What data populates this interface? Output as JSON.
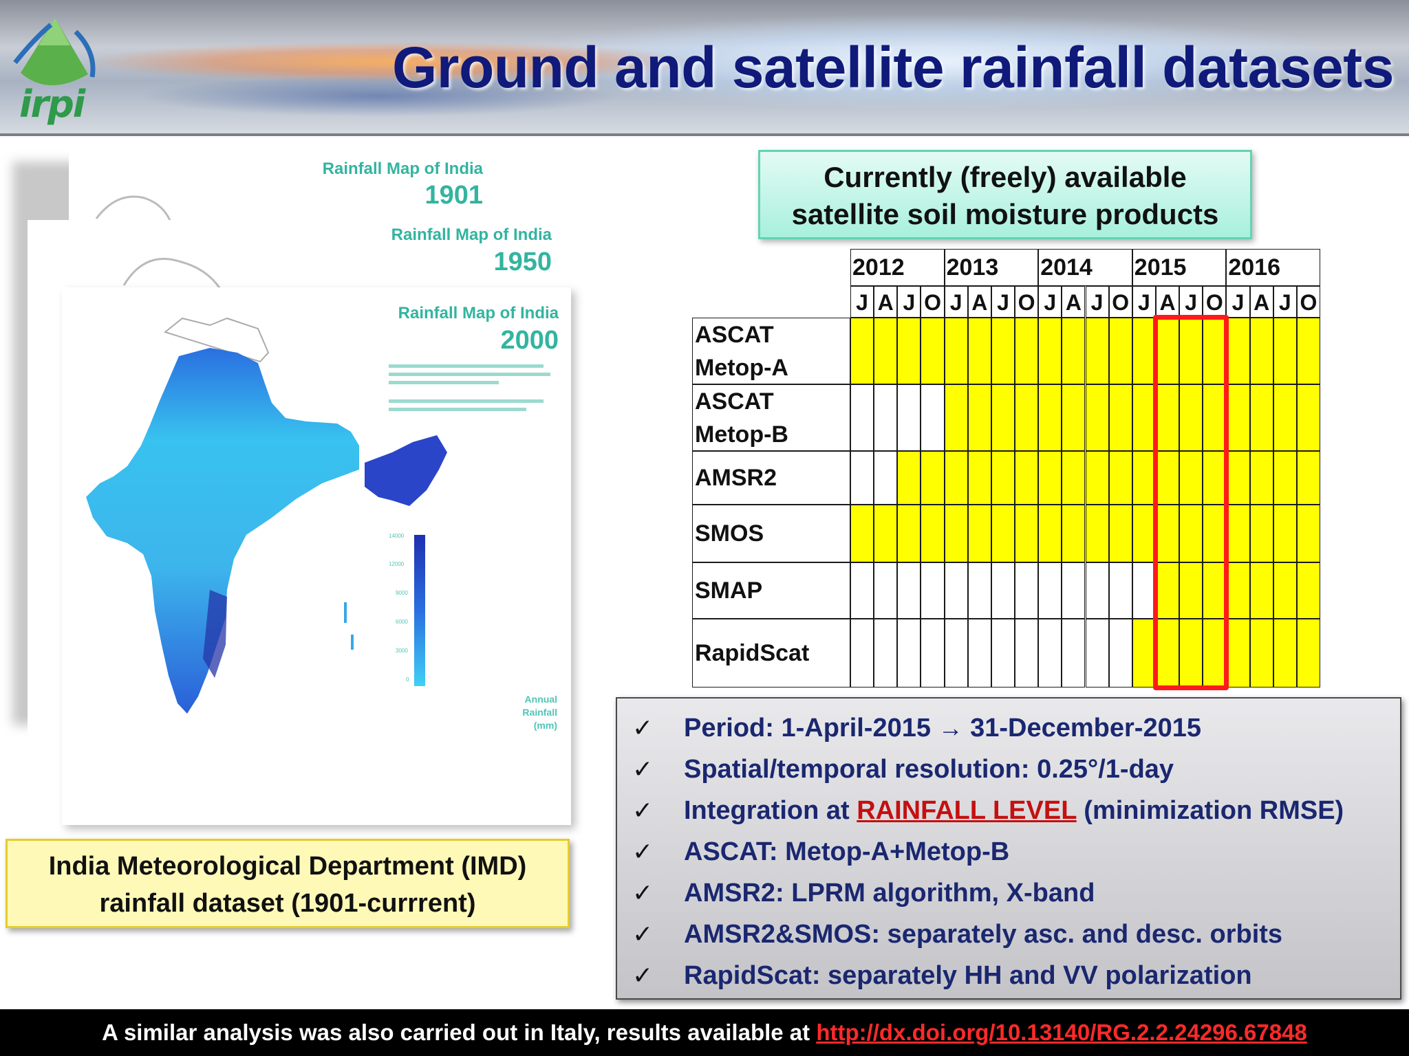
{
  "header": {
    "logo_text": "irpi",
    "title": "Ground and satellite rainfall datasets"
  },
  "maps": [
    {
      "caption": "Rainfall Map of India",
      "year": "1901"
    },
    {
      "caption": "Rainfall Map of India",
      "year": "1950"
    },
    {
      "caption": "Rainfall Map of India",
      "year": "2000"
    }
  ],
  "map_legend": {
    "ticks": [
      "14000",
      "12000",
      "9000",
      "6000",
      "3000",
      "0"
    ],
    "title_lines": [
      "Annual",
      "Rainfall",
      "(mm)"
    ]
  },
  "imd_caption": [
    "India Meteorological Department (IMD)",
    "rainfall dataset (1901-currrent)"
  ],
  "products_box": [
    "Currently (freely) available",
    "satellite soil moisture products"
  ],
  "timeline": {
    "years": [
      "2012",
      "2013",
      "2014",
      "2015",
      "2016"
    ],
    "months": [
      "J",
      "A",
      "J",
      "O"
    ],
    "products": [
      {
        "label_lines": [
          "ASCAT",
          "Metop-A"
        ],
        "available": [
          1,
          1,
          1,
          1,
          1,
          1,
          1,
          1,
          1,
          1,
          1,
          1,
          1,
          1,
          1,
          1,
          1,
          1,
          1,
          1
        ]
      },
      {
        "label_lines": [
          "ASCAT",
          "Metop-B"
        ],
        "available": [
          0,
          0,
          0,
          0,
          1,
          1,
          1,
          1,
          1,
          1,
          1,
          1,
          1,
          1,
          1,
          1,
          1,
          1,
          1,
          1
        ]
      },
      {
        "label_lines": [
          "AMSR2"
        ],
        "available": [
          0,
          0,
          1,
          1,
          1,
          1,
          1,
          1,
          1,
          1,
          1,
          1,
          1,
          1,
          1,
          1,
          1,
          1,
          1,
          1
        ]
      },
      {
        "label_lines": [
          "SMOS"
        ],
        "available": [
          1,
          1,
          1,
          1,
          1,
          1,
          1,
          1,
          1,
          1,
          1,
          1,
          1,
          1,
          1,
          1,
          1,
          1,
          1,
          1
        ]
      },
      {
        "label_lines": [
          "SMAP"
        ],
        "available": [
          0,
          0,
          0,
          0,
          0,
          0,
          0,
          0,
          0,
          0,
          0,
          0,
          0,
          1,
          1,
          1,
          1,
          1,
          1,
          1
        ]
      },
      {
        "label_lines": [
          "RapidScat"
        ],
        "available": [
          0,
          0,
          0,
          0,
          0,
          0,
          0,
          0,
          0,
          0,
          0,
          0,
          1,
          1,
          1,
          1,
          1,
          1,
          1,
          1
        ]
      }
    ],
    "highlight_color": "#ff1a1a",
    "available_color": "#ffff00"
  },
  "bullets": [
    {
      "check": "✓",
      "before": "Period: 1-April-2015 ",
      "arrow": "→",
      "after": " 31-December-2015"
    },
    {
      "check": "✓",
      "text": "Spatial/temporal resolution: 0.25°/1-day"
    },
    {
      "check": "✓",
      "before": "Integration at ",
      "emph": "RAINFALL LEVEL",
      "after": " (minimization RMSE)"
    },
    {
      "check": "✓",
      "text": "ASCAT: Metop-A+Metop-B"
    },
    {
      "check": "✓",
      "text": "AMSR2: LPRM algorithm, X-band"
    },
    {
      "check": "✓",
      "text": "AMSR2&SMOS: separately asc. and desc. orbits"
    },
    {
      "check": "✓",
      "text": "RapidScat: separately HH and VV polarization"
    }
  ],
  "footer": {
    "text": "A similar analysis was also carried out in Italy, results available at ",
    "link": "http://dx.doi.org/10.13140/RG.2.2.24296.67848"
  }
}
